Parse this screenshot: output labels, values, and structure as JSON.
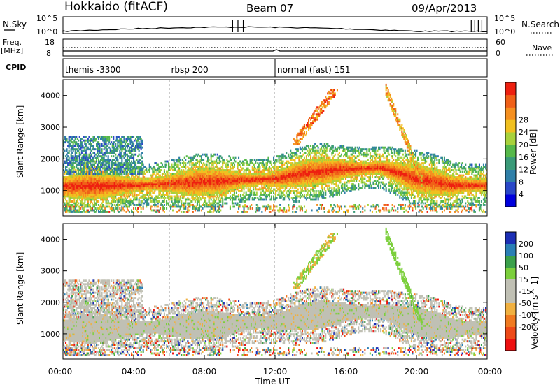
{
  "header": {
    "station": "Hokkaido (fitACF)",
    "beam": "Beam 07",
    "date": "09/Apr/2013"
  },
  "panels": {
    "nsky_label": "N.Sky",
    "nsky_top": "10^5",
    "nsky_bottom": "10^0",
    "nsky_right_top": "10^5",
    "nsky_right_bottom": "10^0",
    "nsearch_label": "N.Search",
    "freq_label": "Freq.",
    "freq_unit": "[MHz]",
    "freq_top": "18",
    "freq_bottom": "8",
    "nave_top": "60",
    "nave_bottom": "0",
    "nave_label": "Nave",
    "cpid_label": "CPID"
  },
  "cpid_segments": [
    {
      "label": "themis -3300",
      "start": 0,
      "end": 6
    },
    {
      "label": "rbsp 200",
      "start": 6,
      "end": 12
    },
    {
      "label": "normal (fast) 151",
      "start": 12,
      "end": 24
    }
  ],
  "colors": {
    "power_scale": [
      "#0000dd",
      "#2a48c8",
      "#2f7fa8",
      "#3a9a78",
      "#56b84a",
      "#a8d23c",
      "#f0c020",
      "#f59020",
      "#f06018",
      "#ee2010"
    ],
    "velocity_scale": [
      "#1c2fb5",
      "#2a7fb5",
      "#3aa04a",
      "#7ccf3c",
      "#c0c0b4",
      "#c0c0b4",
      "#f0b040",
      "#f07a20",
      "#ee4a18",
      "#ee1010"
    ]
  },
  "chart_data": [
    {
      "type": "heatmap",
      "title": "Power",
      "xlabel": "Time UT",
      "ylabel": "Slant Range [km]",
      "colorbar_label": "Power [dB]",
      "colorbar_ticks": [
        "4",
        "8",
        "12",
        "16",
        "20",
        "24",
        "28"
      ],
      "x_ticks": [
        "00:00",
        "04:00",
        "08:00",
        "12:00",
        "16:00",
        "20:00",
        "00:00"
      ],
      "y_ticks": [
        "1000",
        "2000",
        "3000",
        "4000"
      ],
      "xlim_hours": [
        0,
        24
      ],
      "ylim_km": [
        200,
        4500
      ],
      "main_echo_band": {
        "x_hours": [
          0,
          4,
          8,
          12,
          14,
          16,
          18,
          20,
          22,
          24
        ],
        "y_km": [
          1100,
          1150,
          1250,
          1350,
          1550,
          1650,
          1700,
          1350,
          1150,
          1150
        ]
      }
    },
    {
      "type": "heatmap",
      "title": "Velocity",
      "xlabel": "Time UT",
      "ylabel": "Slant Range [km]",
      "colorbar_label": "Velocity [m s^-1]",
      "colorbar_ticks": [
        "200",
        "100",
        "50",
        "15",
        "-15",
        "-50",
        "-100",
        "-200"
      ],
      "x_ticks": [
        "00:00",
        "04:00",
        "08:00",
        "12:00",
        "16:00",
        "20:00",
        "00:00"
      ],
      "y_ticks": [
        "1000",
        "2000",
        "3000",
        "4000"
      ],
      "xlim_hours": [
        0,
        24
      ],
      "ylim_km": [
        200,
        4500
      ]
    }
  ]
}
